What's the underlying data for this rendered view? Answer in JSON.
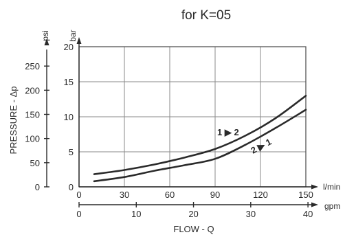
{
  "chart_data": {
    "type": "line",
    "title": "for K=05",
    "xlabel": "FLOW - Q",
    "x_unit": "l/min",
    "x2_unit": "gpm",
    "ylabel": "PRESSURE - Δp",
    "y_unit": "bar",
    "y2_unit": "psi",
    "xlim": [
      0,
      150
    ],
    "ylim": [
      0,
      20
    ],
    "x_ticks": [
      "0",
      "30",
      "60",
      "90",
      "120",
      "150"
    ],
    "y_ticks": [
      "0",
      "5",
      "10",
      "15",
      "20"
    ],
    "x2_ticks": [
      "0",
      "10",
      "20",
      "30",
      "40"
    ],
    "y2_ticks": [
      "0",
      "50",
      "100",
      "150",
      "200",
      "250"
    ],
    "grid": true,
    "series": [
      {
        "name": "1 ▶ 2",
        "x": [
          10,
          30,
          50,
          70,
          90,
          110,
          130,
          150
        ],
        "y": [
          1.8,
          2.4,
          3.2,
          4.2,
          5.4,
          7.3,
          9.8,
          13.0
        ]
      },
      {
        "name": "2 ▶ 1",
        "x": [
          10,
          30,
          50,
          70,
          90,
          110,
          130,
          150
        ],
        "y": [
          0.8,
          1.4,
          2.3,
          3.1,
          4.0,
          6.0,
          8.4,
          11.0
        ]
      }
    ]
  }
}
